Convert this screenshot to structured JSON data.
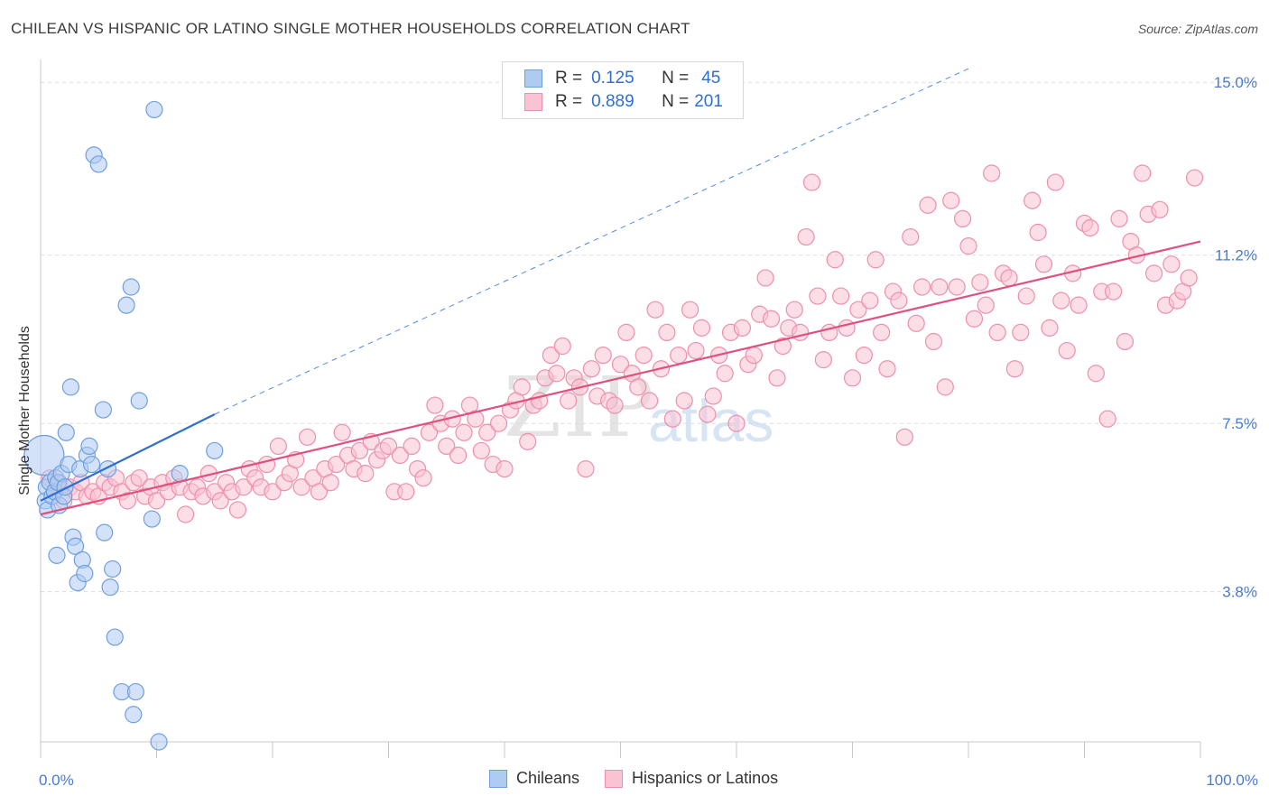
{
  "title": "CHILEAN VS HISPANIC OR LATINO SINGLE MOTHER HOUSEHOLDS CORRELATION CHART",
  "source": "Source: ZipAtlas.com",
  "watermark": {
    "part1": "ZIP",
    "part2": "atlas"
  },
  "legend": {
    "rows": [
      {
        "r_label": "R =",
        "r_value": "0.125",
        "n_label": "N =",
        "n_value": "45",
        "color": "#aecbf2",
        "border": "#6f9fe0"
      },
      {
        "r_label": "R =",
        "r_value": "0.889",
        "n_label": "N =",
        "n_value": "201",
        "color": "#f9c3d4",
        "border": "#ee8fab"
      }
    ]
  },
  "bottom_legend": [
    {
      "label": "Chileans",
      "color": "#aecbf2",
      "border": "#6f9fe0"
    },
    {
      "label": "Hispanics or Latinos",
      "color": "#f9c3d4",
      "border": "#ee8fab"
    }
  ],
  "chart_data": {
    "type": "scatter",
    "title": "CHILEAN VS HISPANIC OR LATINO SINGLE MOTHER HOUSEHOLDS CORRELATION CHART",
    "xlabel": "",
    "ylabel": "Single Mother Households",
    "xlim": [
      0,
      100
    ],
    "ylim": [
      0.5,
      15.5
    ],
    "x_ticks": [
      0,
      10,
      20,
      30,
      40,
      50,
      60,
      70,
      80,
      90,
      100
    ],
    "x_tick_labels": {
      "first": "0.0%",
      "last": "100.0%"
    },
    "y_ticks": [
      3.8,
      7.5,
      11.2,
      15.0
    ],
    "y_tick_labels": [
      "3.8%",
      "7.5%",
      "11.2%",
      "15.0%"
    ],
    "grid": "horizontal dashed",
    "legend_position": "top-center",
    "series": [
      {
        "name": "Chileans",
        "color": "#aecbf2",
        "stroke": "#6f9fe0",
        "trend": {
          "x": [
            0,
            15
          ],
          "y": [
            5.8,
            7.7
          ],
          "extended": [
            15,
            80
          ],
          "extended_y": [
            7.7,
            15.3
          ],
          "color": "#2f6fd0"
        },
        "points": [
          [
            0.3,
            6.8,
            "big"
          ],
          [
            0.4,
            5.8
          ],
          [
            0.5,
            6.1
          ],
          [
            0.6,
            5.6
          ],
          [
            0.8,
            6.2
          ],
          [
            1.0,
            5.9
          ],
          [
            1.2,
            6.0
          ],
          [
            1.3,
            6.3
          ],
          [
            1.5,
            6.2
          ],
          [
            1.6,
            5.7
          ],
          [
            1.8,
            6.4
          ],
          [
            2.0,
            5.9
          ],
          [
            2.2,
            7.3
          ],
          [
            2.4,
            6.6
          ],
          [
            2.6,
            8.3
          ],
          [
            2.8,
            5.0
          ],
          [
            3.0,
            4.8
          ],
          [
            3.2,
            4.0
          ],
          [
            3.4,
            6.5
          ],
          [
            3.6,
            4.5
          ],
          [
            3.8,
            4.2
          ],
          [
            4.0,
            6.8
          ],
          [
            4.2,
            7.0
          ],
          [
            4.4,
            6.6
          ],
          [
            4.6,
            13.4
          ],
          [
            5.0,
            13.2
          ],
          [
            5.4,
            7.8
          ],
          [
            5.5,
            5.1
          ],
          [
            5.8,
            6.5
          ],
          [
            6.0,
            3.9
          ],
          [
            6.2,
            4.3
          ],
          [
            6.4,
            2.8
          ],
          [
            7.0,
            1.6
          ],
          [
            7.4,
            10.1
          ],
          [
            7.8,
            10.5
          ],
          [
            8.0,
            1.1
          ],
          [
            8.2,
            1.6
          ],
          [
            8.5,
            8.0
          ],
          [
            9.6,
            5.4
          ],
          [
            10.2,
            0.5
          ],
          [
            12.0,
            6.4
          ],
          [
            9.8,
            14.4
          ],
          [
            1.4,
            4.6
          ],
          [
            2.1,
            6.1
          ],
          [
            15.0,
            6.9
          ]
        ]
      },
      {
        "name": "Hispanics or Latinos",
        "color": "#f9c3d4",
        "stroke": "#ee8fab",
        "trend": {
          "x": [
            0,
            100
          ],
          "y": [
            5.5,
            11.5
          ],
          "color": "#e0507f"
        },
        "points": [
          [
            0.8,
            6.3
          ],
          [
            1.2,
            6.0
          ],
          [
            1.6,
            6.2
          ],
          [
            2.0,
            5.8
          ],
          [
            2.5,
            6.1
          ],
          [
            3.0,
            6.0
          ],
          [
            3.5,
            6.2
          ],
          [
            4.0,
            5.9
          ],
          [
            4.5,
            6.0
          ],
          [
            5.0,
            5.9
          ],
          [
            5.5,
            6.2
          ],
          [
            6.0,
            6.1
          ],
          [
            6.5,
            6.3
          ],
          [
            7.0,
            6.0
          ],
          [
            7.5,
            5.8
          ],
          [
            8.0,
            6.2
          ],
          [
            8.5,
            6.3
          ],
          [
            9.0,
            5.9
          ],
          [
            9.5,
            6.1
          ],
          [
            10.0,
            5.8
          ],
          [
            10.5,
            6.2
          ],
          [
            11.0,
            6.0
          ],
          [
            11.5,
            6.3
          ],
          [
            12.0,
            6.1
          ],
          [
            12.5,
            5.5
          ],
          [
            13.0,
            6.0
          ],
          [
            13.5,
            6.1
          ],
          [
            14.0,
            5.9
          ],
          [
            14.5,
            6.4
          ],
          [
            15.0,
            6.0
          ],
          [
            15.5,
            5.8
          ],
          [
            16.0,
            6.2
          ],
          [
            16.5,
            6.0
          ],
          [
            17.0,
            5.6
          ],
          [
            17.5,
            6.1
          ],
          [
            18.0,
            6.5
          ],
          [
            18.5,
            6.3
          ],
          [
            19.0,
            6.1
          ],
          [
            19.5,
            6.6
          ],
          [
            20.0,
            6.0
          ],
          [
            20.5,
            7.0
          ],
          [
            21.0,
            6.2
          ],
          [
            21.5,
            6.4
          ],
          [
            22.0,
            6.7
          ],
          [
            22.5,
            6.1
          ],
          [
            23.0,
            7.2
          ],
          [
            23.5,
            6.3
          ],
          [
            24.0,
            6.0
          ],
          [
            24.5,
            6.5
          ],
          [
            25.0,
            6.2
          ],
          [
            25.5,
            6.6
          ],
          [
            26.0,
            7.3
          ],
          [
            26.5,
            6.8
          ],
          [
            27.0,
            6.5
          ],
          [
            27.5,
            6.9
          ],
          [
            28.0,
            6.4
          ],
          [
            28.5,
            7.1
          ],
          [
            29.0,
            6.7
          ],
          [
            29.5,
            6.9
          ],
          [
            30.0,
            7.0
          ],
          [
            30.5,
            6.0
          ],
          [
            31.0,
            6.8
          ],
          [
            31.5,
            6.0
          ],
          [
            32.0,
            7.0
          ],
          [
            32.5,
            6.5
          ],
          [
            33.0,
            6.3
          ],
          [
            33.5,
            7.3
          ],
          [
            34.0,
            7.9
          ],
          [
            34.5,
            7.5
          ],
          [
            35.0,
            7.0
          ],
          [
            35.5,
            7.6
          ],
          [
            36.0,
            6.8
          ],
          [
            36.5,
            7.3
          ],
          [
            37.0,
            7.9
          ],
          [
            37.5,
            7.6
          ],
          [
            38.0,
            6.9
          ],
          [
            38.5,
            7.3
          ],
          [
            39.0,
            6.6
          ],
          [
            39.5,
            7.5
          ],
          [
            40.0,
            6.5
          ],
          [
            40.5,
            7.8
          ],
          [
            41.0,
            8.0
          ],
          [
            41.5,
            8.3
          ],
          [
            42.0,
            7.1
          ],
          [
            42.5,
            7.9
          ],
          [
            43.0,
            8.0
          ],
          [
            43.5,
            8.5
          ],
          [
            44.0,
            9.0
          ],
          [
            44.5,
            8.6
          ],
          [
            45.0,
            9.2
          ],
          [
            45.5,
            8.0
          ],
          [
            46.0,
            8.5
          ],
          [
            46.5,
            8.3
          ],
          [
            47.0,
            6.5
          ],
          [
            47.5,
            8.7
          ],
          [
            48.0,
            8.1
          ],
          [
            48.5,
            9.0
          ],
          [
            49.0,
            8.0
          ],
          [
            49.5,
            7.9
          ],
          [
            50.0,
            8.8
          ],
          [
            50.5,
            9.5
          ],
          [
            51.0,
            8.6
          ],
          [
            51.5,
            8.3
          ],
          [
            52.0,
            9.0
          ],
          [
            52.5,
            8.0
          ],
          [
            53.0,
            10.0
          ],
          [
            53.5,
            8.7
          ],
          [
            54.0,
            9.5
          ],
          [
            54.5,
            7.6
          ],
          [
            55.0,
            9.0
          ],
          [
            55.5,
            8.0
          ],
          [
            56.0,
            10.0
          ],
          [
            56.5,
            9.1
          ],
          [
            57.0,
            9.6
          ],
          [
            57.5,
            7.7
          ],
          [
            58.0,
            8.1
          ],
          [
            58.5,
            9.0
          ],
          [
            59.0,
            8.6
          ],
          [
            59.5,
            9.5
          ],
          [
            60.0,
            7.5
          ],
          [
            60.5,
            9.6
          ],
          [
            61.0,
            8.8
          ],
          [
            61.5,
            9.0
          ],
          [
            62.0,
            9.9
          ],
          [
            62.5,
            10.7
          ],
          [
            63.0,
            9.8
          ],
          [
            63.5,
            8.5
          ],
          [
            64.0,
            9.2
          ],
          [
            64.5,
            9.6
          ],
          [
            65.0,
            10.0
          ],
          [
            65.5,
            9.5
          ],
          [
            66.0,
            11.6
          ],
          [
            66.5,
            12.8
          ],
          [
            67.0,
            10.3
          ],
          [
            67.5,
            8.9
          ],
          [
            68.0,
            9.5
          ],
          [
            68.5,
            11.1
          ],
          [
            69.0,
            10.3
          ],
          [
            69.5,
            9.6
          ],
          [
            70.0,
            8.5
          ],
          [
            70.5,
            10.0
          ],
          [
            71.0,
            9.0
          ],
          [
            71.5,
            10.2
          ],
          [
            72.0,
            11.1
          ],
          [
            72.5,
            9.5
          ],
          [
            73.0,
            8.7
          ],
          [
            73.5,
            10.4
          ],
          [
            74.0,
            10.2
          ],
          [
            74.5,
            7.2
          ],
          [
            75.0,
            11.6
          ],
          [
            75.5,
            9.7
          ],
          [
            76.0,
            10.5
          ],
          [
            76.5,
            12.3
          ],
          [
            77.0,
            9.3
          ],
          [
            77.5,
            10.5
          ],
          [
            78.0,
            8.3
          ],
          [
            78.5,
            12.4
          ],
          [
            79.0,
            10.5
          ],
          [
            79.5,
            12.0
          ],
          [
            80.0,
            11.4
          ],
          [
            80.5,
            9.8
          ],
          [
            81.0,
            10.6
          ],
          [
            81.5,
            10.1
          ],
          [
            82.0,
            13.0
          ],
          [
            82.5,
            9.5
          ],
          [
            83.0,
            10.8
          ],
          [
            83.5,
            10.7
          ],
          [
            84.0,
            8.7
          ],
          [
            84.5,
            9.5
          ],
          [
            85.0,
            10.3
          ],
          [
            85.5,
            12.4
          ],
          [
            86.0,
            11.7
          ],
          [
            86.5,
            11.0
          ],
          [
            87.0,
            9.6
          ],
          [
            87.5,
            12.8
          ],
          [
            88.0,
            10.2
          ],
          [
            88.5,
            9.1
          ],
          [
            89.0,
            10.8
          ],
          [
            89.5,
            10.1
          ],
          [
            90.0,
            11.9
          ],
          [
            90.5,
            11.8
          ],
          [
            91.0,
            8.6
          ],
          [
            91.5,
            10.4
          ],
          [
            92.0,
            7.6
          ],
          [
            92.5,
            10.4
          ],
          [
            93.0,
            12.0
          ],
          [
            93.5,
            9.3
          ],
          [
            94.0,
            11.5
          ],
          [
            94.5,
            11.2
          ],
          [
            95.0,
            13.0
          ],
          [
            95.5,
            12.1
          ],
          [
            96.0,
            10.8
          ],
          [
            96.5,
            12.2
          ],
          [
            97.0,
            10.1
          ],
          [
            97.5,
            11.0
          ],
          [
            98.0,
            10.2
          ],
          [
            98.5,
            10.4
          ],
          [
            99.0,
            10.7
          ],
          [
            99.5,
            12.9
          ]
        ]
      }
    ]
  }
}
